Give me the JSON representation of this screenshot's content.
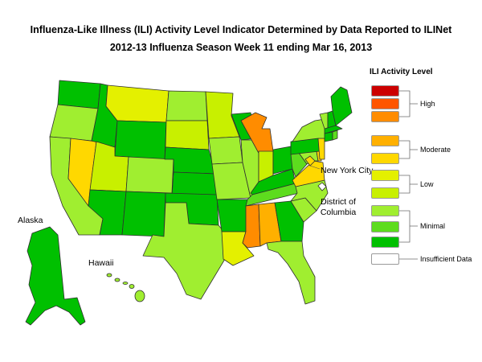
{
  "title": {
    "line1": "Influenza-Like Illness (ILI) Activity Level Indicator Determined by Data Reported to ILINet",
    "line2": "2012-13  Influenza Season Week  11 ending Mar 16, 2013"
  },
  "colors": {
    "level10": "#cc0000",
    "level9": "#ff5500",
    "level8": "#ff8c00",
    "level7": "#ffb000",
    "level6": "#ffd800",
    "level5": "#e4f000",
    "level4": "#c8f000",
    "level3": "#a0ee30",
    "level2": "#5ddc1e",
    "level1": "#00c000",
    "insufficient": "#ffffff"
  },
  "legend": {
    "title": "ILI Activity Level",
    "groups": {
      "high": "High",
      "moderate": "Moderate",
      "low": "Low",
      "minimal": "Minimal",
      "insufficient": "Insufficient Data"
    }
  },
  "labels": {
    "alaska": "Alaska",
    "hawaii": "Hawaii",
    "nyc": "New York City",
    "dc_line1": "District of",
    "dc_line2": "Columbia"
  },
  "states": {
    "WA": 1,
    "OR": 3,
    "CA": 3,
    "NV": 6,
    "ID": 1,
    "MT": 5,
    "WY": 1,
    "UT": 4,
    "AZ": 1,
    "CO": 3,
    "NM": 1,
    "ND": 3,
    "SD": 4,
    "NE": 1,
    "KS": 1,
    "OK": 1,
    "TX": 3,
    "MN": 4,
    "IA": 3,
    "MO": 3,
    "AR": 1,
    "LA": 5,
    "WI": 1,
    "IL": 3,
    "MI": 8,
    "IN": 4,
    "OH": 1,
    "KY": 1,
    "TN": 2,
    "MS": 8,
    "AL": 7,
    "GA": 1,
    "FL": 3,
    "SC": 3,
    "NC": 3,
    "VA": 6,
    "WV": 2,
    "PA": 1,
    "NY": 3,
    "VT": 3,
    "NH": 1,
    "ME": 1,
    "MA": 1,
    "RI": 2,
    "CT": 1,
    "NJ": 6,
    "DE": 6,
    "MD": 3,
    "AK": 1,
    "HI": 3,
    "NYC": 6,
    "DC": 0
  }
}
